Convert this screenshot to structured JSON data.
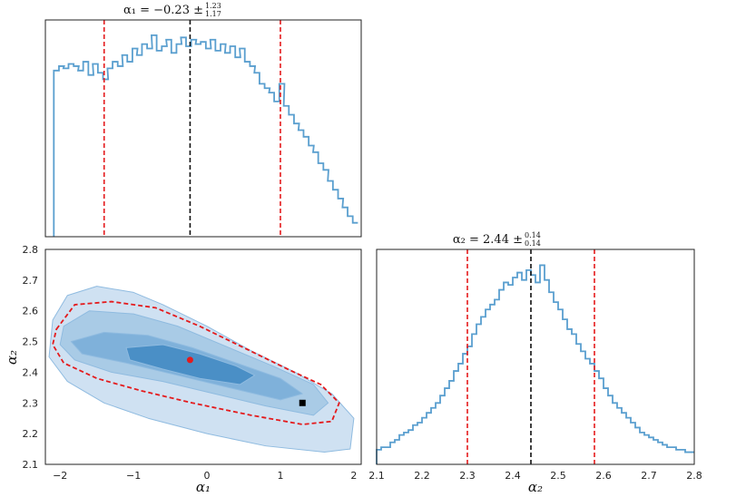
{
  "chart_data": [
    {
      "type": "histogram",
      "panel": "alpha1-marginal",
      "title": {
        "main": "α₁ = −0.23 ±",
        "upper": "1.23",
        "lower": "1.17"
      },
      "xlim": [
        -2.2,
        2.1
      ],
      "xticks": [
        "−2",
        "−1",
        "0",
        "1",
        "2"
      ],
      "median": -0.23,
      "lower_bound": -1.4,
      "upper_bound": 1.0,
      "x": [
        -2.05,
        -1.98,
        -1.92,
        -1.85,
        -1.78,
        -1.72,
        -1.65,
        -1.58,
        -1.52,
        -1.45,
        -1.38,
        -1.32,
        -1.25,
        -1.18,
        -1.12,
        -1.05,
        -0.98,
        -0.92,
        -0.85,
        -0.78,
        -0.72,
        -0.65,
        -0.58,
        -0.52,
        -0.45,
        -0.38,
        -0.32,
        -0.25,
        -0.18,
        -0.12,
        -0.05,
        0.02,
        0.08,
        0.15,
        0.22,
        0.28,
        0.35,
        0.42,
        0.48,
        0.55,
        0.62,
        0.68,
        0.75,
        0.82,
        0.88,
        0.95,
        1.02,
        1.08,
        1.15,
        1.22,
        1.28,
        1.35,
        1.42,
        1.48,
        1.55,
        1.62,
        1.68,
        1.75,
        1.82,
        1.88,
        1.95,
        2.02
      ],
      "density": [
        0.72,
        0.74,
        0.73,
        0.75,
        0.74,
        0.72,
        0.76,
        0.7,
        0.75,
        0.71,
        0.68,
        0.73,
        0.76,
        0.74,
        0.79,
        0.76,
        0.82,
        0.79,
        0.84,
        0.82,
        0.88,
        0.81,
        0.83,
        0.86,
        0.8,
        0.84,
        0.87,
        0.83,
        0.86,
        0.84,
        0.85,
        0.82,
        0.86,
        0.81,
        0.84,
        0.8,
        0.83,
        0.78,
        0.82,
        0.76,
        0.74,
        0.71,
        0.66,
        0.64,
        0.62,
        0.58,
        0.66,
        0.56,
        0.52,
        0.48,
        0.45,
        0.42,
        0.38,
        0.35,
        0.3,
        0.27,
        0.22,
        0.18,
        0.14,
        0.1,
        0.06,
        0.03
      ]
    },
    {
      "type": "contour",
      "panel": "alpha1-alpha2-joint",
      "xlabel": "α₁",
      "ylabel": "α₂",
      "xlim": [
        -2.2,
        2.1
      ],
      "ylim": [
        2.1,
        2.8
      ],
      "xticks": [
        "−2",
        "−1",
        "0",
        "1",
        "2"
      ],
      "yticks": [
        "2.1",
        "2.2",
        "2.3",
        "2.4",
        "2.5",
        "2.6",
        "2.7",
        "2.8"
      ],
      "levels": [
        {
          "level": "outer",
          "color": "#cfe1f2",
          "polygon": [
            [
              -2.1,
              2.57
            ],
            [
              -1.9,
              2.65
            ],
            [
              -1.5,
              2.68
            ],
            [
              -1.0,
              2.66
            ],
            [
              -0.6,
              2.62
            ],
            [
              0.0,
              2.55
            ],
            [
              0.6,
              2.47
            ],
            [
              1.2,
              2.4
            ],
            [
              1.7,
              2.33
            ],
            [
              2.0,
              2.25
            ],
            [
              1.95,
              2.15
            ],
            [
              1.6,
              2.14
            ],
            [
              0.8,
              2.16
            ],
            [
              0.0,
              2.2
            ],
            [
              -0.8,
              2.25
            ],
            [
              -1.4,
              2.3
            ],
            [
              -1.9,
              2.37
            ],
            [
              -2.15,
              2.45
            ]
          ]
        },
        {
          "level": "2sigma-fill",
          "color": "#a9cbe6",
          "polygon": [
            [
              -1.95,
              2.55
            ],
            [
              -1.6,
              2.6
            ],
            [
              -1.0,
              2.59
            ],
            [
              -0.4,
              2.55
            ],
            [
              0.3,
              2.48
            ],
            [
              0.9,
              2.42
            ],
            [
              1.45,
              2.36
            ],
            [
              1.65,
              2.3
            ],
            [
              1.45,
              2.26
            ],
            [
              0.8,
              2.29
            ],
            [
              0.1,
              2.33
            ],
            [
              -0.6,
              2.37
            ],
            [
              -1.3,
              2.4
            ],
            [
              -1.8,
              2.44
            ],
            [
              -2.0,
              2.49
            ]
          ]
        },
        {
          "level": "1sigma-fill",
          "color": "#7fb1da",
          "polygon": [
            [
              -1.85,
              2.5
            ],
            [
              -1.4,
              2.53
            ],
            [
              -0.8,
              2.52
            ],
            [
              -0.2,
              2.48
            ],
            [
              0.4,
              2.43
            ],
            [
              1.0,
              2.38
            ],
            [
              1.3,
              2.33
            ],
            [
              1.0,
              2.31
            ],
            [
              0.3,
              2.35
            ],
            [
              -0.4,
              2.39
            ],
            [
              -1.1,
              2.43
            ],
            [
              -1.7,
              2.46
            ]
          ]
        },
        {
          "level": "core",
          "color": "#4a8fc6",
          "polygon": [
            [
              -1.1,
              2.48
            ],
            [
              -0.6,
              2.49
            ],
            [
              -0.1,
              2.46
            ],
            [
              0.4,
              2.42
            ],
            [
              0.65,
              2.39
            ],
            [
              0.45,
              2.36
            ],
            [
              -0.1,
              2.38
            ],
            [
              -0.6,
              2.41
            ],
            [
              -1.05,
              2.44
            ]
          ]
        }
      ],
      "dashed_contour": [
        [
          -2.05,
          2.54
        ],
        [
          -1.8,
          2.62
        ],
        [
          -1.3,
          2.63
        ],
        [
          -0.7,
          2.61
        ],
        [
          -0.1,
          2.55
        ],
        [
          0.5,
          2.48
        ],
        [
          1.1,
          2.41
        ],
        [
          1.55,
          2.36
        ],
        [
          1.8,
          2.3
        ],
        [
          1.7,
          2.24
        ],
        [
          1.3,
          2.23
        ],
        [
          0.6,
          2.26
        ],
        [
          -0.2,
          2.3
        ],
        [
          -0.9,
          2.34
        ],
        [
          -1.5,
          2.38
        ],
        [
          -1.95,
          2.43
        ],
        [
          -2.1,
          2.49
        ]
      ],
      "dashed_color": "#e41a1c",
      "red_point": [
        -0.23,
        2.44
      ],
      "black_point": [
        1.3,
        2.3
      ]
    },
    {
      "type": "histogram",
      "panel": "alpha2-marginal",
      "title": {
        "main": "α₂ = 2.44 ±",
        "upper": "0.14",
        "lower": "0.14"
      },
      "xlabel": "α₂",
      "xlim": [
        2.1,
        2.8
      ],
      "xticks": [
        "2.1",
        "2.2",
        "2.3",
        "2.4",
        "2.5",
        "2.6",
        "2.7",
        "2.8"
      ],
      "median": 2.44,
      "lower_bound": 2.3,
      "upper_bound": 2.58,
      "x": [
        2.105,
        2.115,
        2.125,
        2.135,
        2.145,
        2.155,
        2.165,
        2.175,
        2.185,
        2.195,
        2.205,
        2.215,
        2.225,
        2.235,
        2.245,
        2.255,
        2.265,
        2.275,
        2.285,
        2.295,
        2.305,
        2.315,
        2.325,
        2.335,
        2.345,
        2.355,
        2.365,
        2.375,
        2.385,
        2.395,
        2.405,
        2.415,
        2.425,
        2.435,
        2.445,
        2.455,
        2.465,
        2.475,
        2.485,
        2.495,
        2.505,
        2.515,
        2.525,
        2.535,
        2.545,
        2.555,
        2.565,
        2.575,
        2.585,
        2.595,
        2.605,
        2.615,
        2.625,
        2.635,
        2.645,
        2.655,
        2.665,
        2.675,
        2.685,
        2.695,
        2.705,
        2.715,
        2.725,
        2.735,
        2.745,
        2.755,
        2.765,
        2.775,
        2.785,
        2.795
      ],
      "density": [
        0.03,
        0.04,
        0.04,
        0.06,
        0.07,
        0.09,
        0.1,
        0.11,
        0.13,
        0.14,
        0.16,
        0.18,
        0.2,
        0.22,
        0.25,
        0.28,
        0.31,
        0.35,
        0.38,
        0.42,
        0.45,
        0.5,
        0.54,
        0.57,
        0.6,
        0.62,
        0.64,
        0.68,
        0.71,
        0.7,
        0.73,
        0.75,
        0.72,
        0.76,
        0.74,
        0.71,
        0.78,
        0.72,
        0.67,
        0.63,
        0.6,
        0.56,
        0.52,
        0.5,
        0.46,
        0.43,
        0.4,
        0.38,
        0.35,
        0.32,
        0.28,
        0.25,
        0.22,
        0.2,
        0.18,
        0.16,
        0.14,
        0.12,
        0.1,
        0.09,
        0.08,
        0.07,
        0.06,
        0.05,
        0.04,
        0.04,
        0.03,
        0.03,
        0.02,
        0.02
      ]
    }
  ]
}
